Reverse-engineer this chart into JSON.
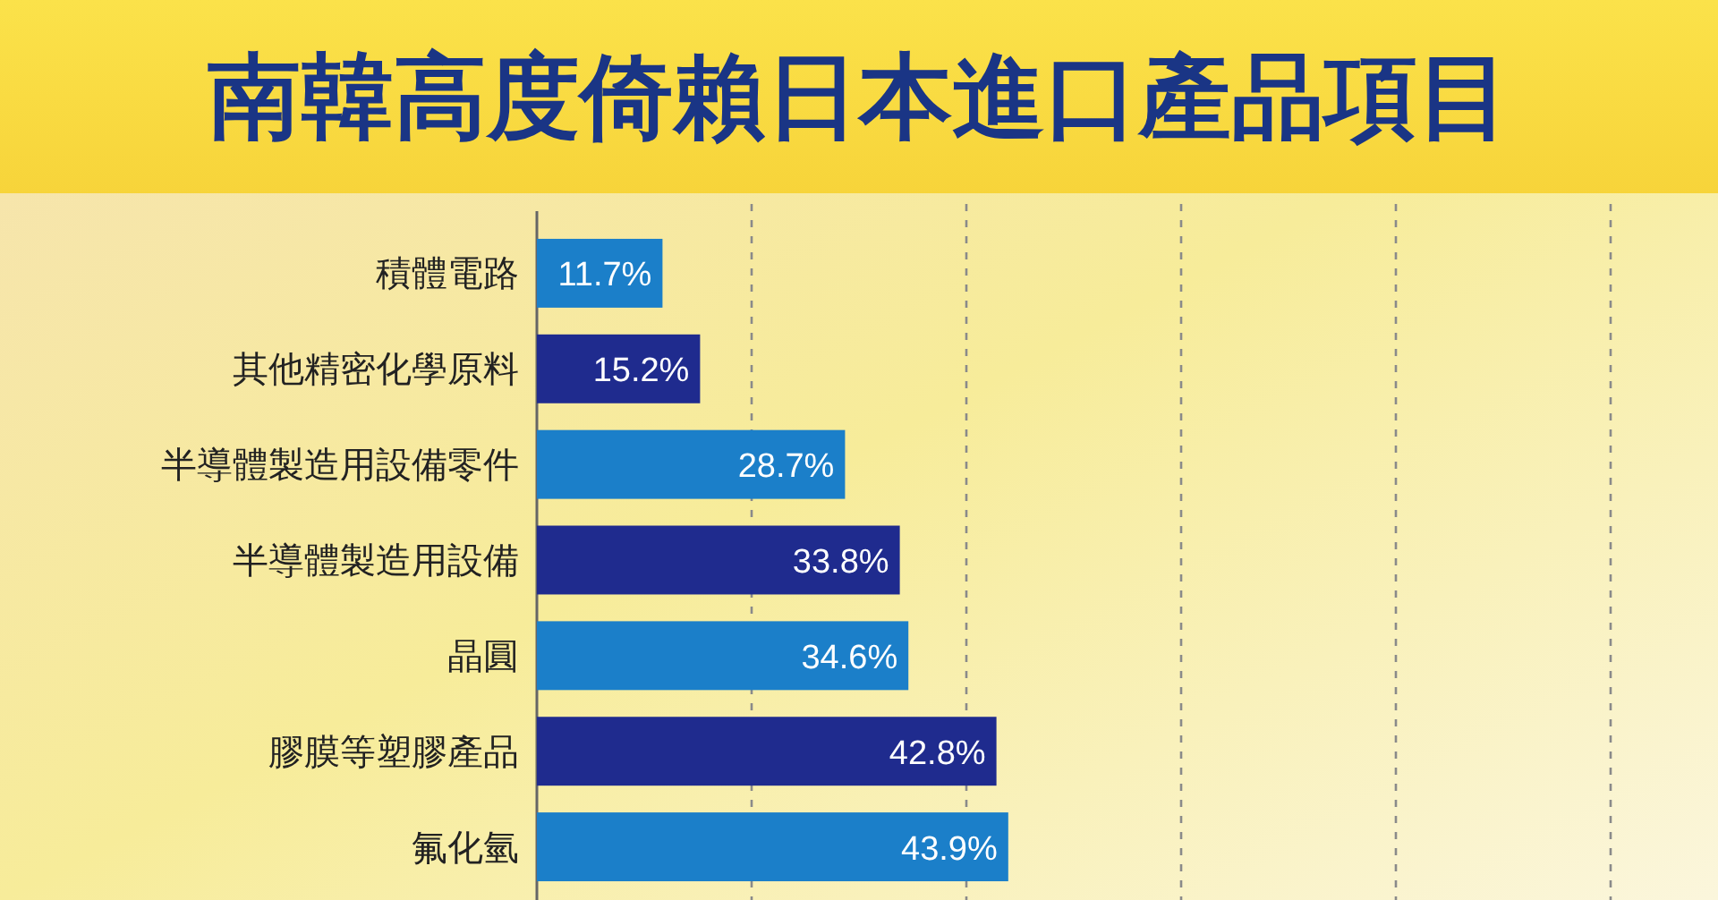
{
  "chart_data": {
    "type": "bar",
    "orientation": "horizontal",
    "title": "南韓高度倚賴日本進口產品項目",
    "categories": [
      "積體電路",
      "其他精密化學原料",
      "半導體製造用設備零件",
      "半導體製造用設備",
      "晶圓",
      "膠膜等塑膠產品",
      "氟化氫"
    ],
    "values": [
      11.7,
      15.2,
      28.7,
      33.8,
      34.6,
      42.8,
      43.9
    ],
    "colors": [
      "#1b7fc9",
      "#1f2b8e",
      "#1b7fc9",
      "#1f2b8e",
      "#1b7fc9",
      "#1f2b8e",
      "#1b7fc9"
    ],
    "value_labels": [
      "11.7%",
      "15.2%",
      "28.7%",
      "33.8%",
      "34.6%",
      "42.8%",
      "43.9%"
    ],
    "xlim": [
      0,
      110
    ],
    "xticks": [
      {
        "value": 20,
        "label": null
      },
      {
        "value": 40,
        "label": null
      },
      {
        "value": 60,
        "label": null
      },
      {
        "value": 80,
        "label": null
      },
      {
        "value": 100,
        "label": null
      }
    ],
    "grid": "x",
    "tick_labels": "y"
  }
}
